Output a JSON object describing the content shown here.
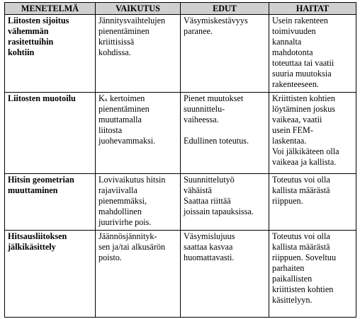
{
  "headers": [
    "MENETELMÄ",
    "VAIKUTUS",
    "EDUT",
    "HAITAT"
  ],
  "rows": [
    {
      "method": [
        "Liitosten sijoitus",
        "vähemmän",
        "rasitettuihin",
        "kohtiin"
      ],
      "effect": [
        "Jännitysvaihtelujen",
        "pienentäminen",
        "kriittisissä",
        "kohdissa."
      ],
      "benefits": [
        [
          "Väsymiskestävyys",
          "paranee."
        ]
      ],
      "drawbacks": [
        [
          "Usein rakenteen",
          "toimivuuden",
          "kannalta",
          "mahdotonta",
          "toteuttaa tai vaatii",
          "suuria muutoksia",
          "rakenteeseen."
        ]
      ]
    },
    {
      "method": [
        "Liitosten muotoilu"
      ],
      "effect": [
        "Kₛ kertoimen",
        "pienentäminen",
        "muuttamalla",
        "liitosta",
        "juohevammaksi."
      ],
      "benefits": [
        [
          "Pienet muutokset",
          "suunnittelu-",
          "vaiheessa."
        ],
        [
          "Edullinen toteutus."
        ]
      ],
      "drawbacks": [
        [
          "Kriittisten kohtien",
          "löytäminen joskus",
          "vaikeaa, vaatii",
          "usein FEM-",
          "laskentaa."
        ],
        [
          "Voi jälkikäteen olla",
          "vaikeaa ja kallista."
        ]
      ]
    },
    {
      "method": [
        "Hitsin geometrian",
        "muuttaminen"
      ],
      "effect": [
        "Lovivaikutus hitsin",
        "rajaviivalla",
        "pienemmäksi,",
        "mahdollinen",
        "juurivirhe pois."
      ],
      "benefits": [
        [
          "Suunnittelutyö",
          "vähäistä",
          "Saattaa riittää",
          "joissain tapauksissa."
        ]
      ],
      "drawbacks": [
        [
          "Toteutus voi olla",
          "kallista määrästä",
          "riippuen."
        ]
      ]
    },
    {
      "method": [
        "Hitsausliitoksen",
        "jälkikäsittely"
      ],
      "effect": [
        "Jäännösjännityk-",
        "sen ja/tai alkusärön",
        "poisto."
      ],
      "benefits": [
        [
          "Väsymislujuus",
          "saattaa kasvaa",
          "huomattavasti."
        ]
      ],
      "drawbacks": [
        [
          "Toteutus voi olla",
          "kallista määrästä",
          "riippuen. Soveltuu",
          "parhaiten",
          "paikallisten",
          "kriittisten kohtien",
          "käsittelyyn."
        ]
      ]
    }
  ]
}
